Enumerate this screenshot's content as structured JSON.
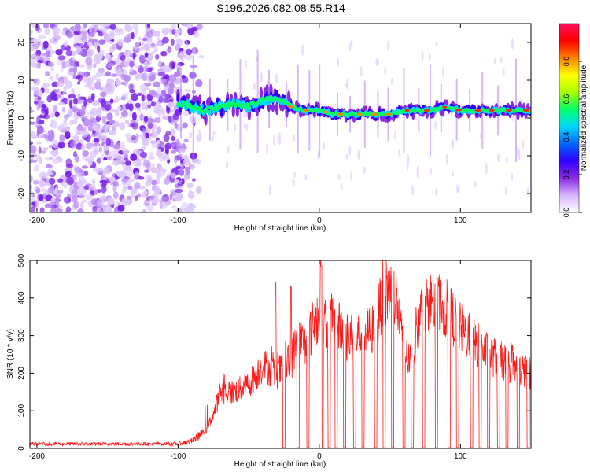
{
  "title": "S196.2026.082.08.55.R14",
  "chart_data": [
    {
      "type": "heatmap",
      "name": "spectrogram",
      "xlabel": "Height of straight line (km)",
      "ylabel": "Frequency (Hz)",
      "xlim": [
        -205,
        150
      ],
      "ylim": [
        -25,
        25
      ],
      "xticks": [
        -200,
        -100,
        0,
        100
      ],
      "yticks": [
        20,
        10,
        0,
        -10,
        -20
      ],
      "colorbar": {
        "label": "Normalized spectral amplitude",
        "range": [
          0,
          1
        ],
        "ticks": [
          0.0,
          0.2,
          0.4,
          0.6,
          0.8
        ],
        "colormap": [
          "#ffffff",
          "#d7b6ff",
          "#8a2be2",
          "#2f00ff",
          "#0066ff",
          "#00d8ff",
          "#00ff66",
          "#aaff00",
          "#ffff00",
          "#ff8000",
          "#ff0000",
          "#ff1060"
        ]
      },
      "ridge": {
        "description_points_x": [
          -100,
          -90,
          -80,
          -70,
          -60,
          -50,
          -40,
          -30,
          -20,
          -10,
          0,
          10,
          20,
          30,
          40,
          50,
          60,
          70,
          80,
          90,
          100,
          110,
          120,
          130,
          140,
          150
        ],
        "frequency_hz": [
          4,
          3,
          2,
          3,
          4,
          3,
          5,
          5,
          3,
          2,
          2,
          1,
          1,
          1,
          1,
          1,
          2,
          2,
          2,
          3,
          2,
          2,
          2,
          2,
          2,
          2
        ],
        "noise_region_x": [
          -205,
          -88
        ]
      }
    },
    {
      "type": "line",
      "name": "snr",
      "xlabel": "Height of straight line (km)",
      "ylabel": "SNR (10 * v/v)",
      "xlim": [
        -205,
        150
      ],
      "ylim": [
        0,
        500
      ],
      "xticks": [
        -200,
        -100,
        0,
        100
      ],
      "yticks": [
        500,
        400,
        300,
        200,
        100,
        0
      ],
      "color": "#ff1a1a",
      "envelope": {
        "x": [
          -205,
          -100,
          -90,
          -80,
          -75,
          -70,
          -60,
          -50,
          -40,
          -30,
          -20,
          -15,
          -10,
          -5,
          0,
          5,
          10,
          20,
          30,
          40,
          45,
          50,
          55,
          60,
          65,
          70,
          75,
          80,
          90,
          100,
          110,
          120,
          130,
          140,
          150
        ],
        "y": [
          12,
          12,
          20,
          50,
          90,
          150,
          150,
          170,
          220,
          200,
          230,
          300,
          270,
          320,
          360,
          330,
          340,
          290,
          300,
          320,
          410,
          420,
          390,
          250,
          230,
          340,
          380,
          390,
          370,
          320,
          280,
          250,
          230,
          210,
          200
        ]
      },
      "dropouts_x": [
        -25,
        -15,
        -8,
        2,
        7,
        12,
        18,
        25,
        31,
        40,
        46,
        52,
        60,
        66,
        74,
        83,
        92,
        98,
        108,
        114,
        120,
        127,
        133,
        141,
        148
      ],
      "spikes": [
        {
          "x": -31,
          "y": 440
        },
        {
          "x": -20,
          "y": 430
        },
        {
          "x": 1,
          "y": 500
        },
        {
          "x": 1.5,
          "y": 485
        }
      ]
    }
  ]
}
